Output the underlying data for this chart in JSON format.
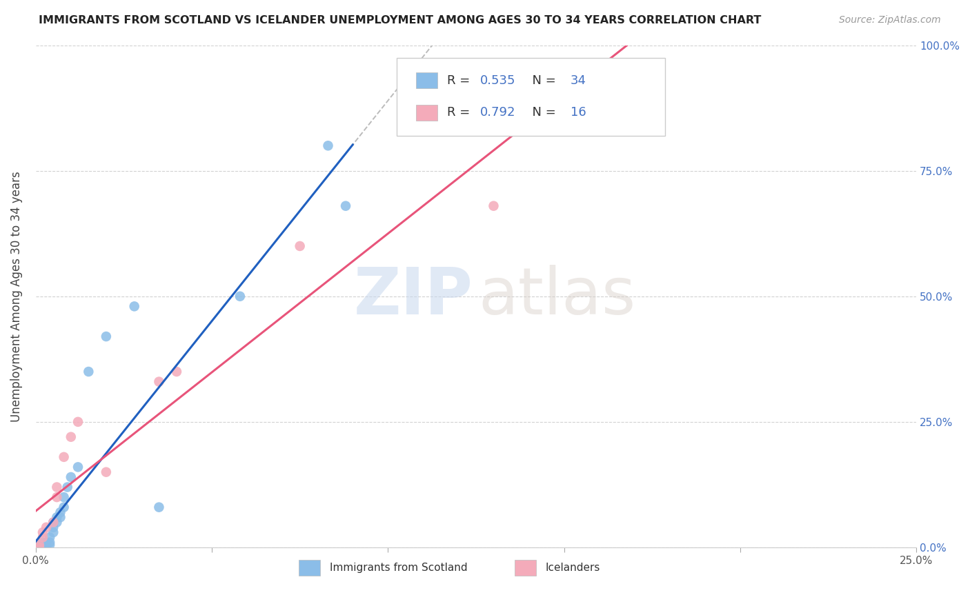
{
  "title": "IMMIGRANTS FROM SCOTLAND VS ICELANDER UNEMPLOYMENT AMONG AGES 30 TO 34 YEARS CORRELATION CHART",
  "source": "Source: ZipAtlas.com",
  "ylabel": "Unemployment Among Ages 30 to 34 years",
  "xlim": [
    0,
    0.25
  ],
  "ylim": [
    0,
    1.0
  ],
  "yticks": [
    0.0,
    0.25,
    0.5,
    0.75,
    1.0
  ],
  "yticklabels": [
    "0.0%",
    "25.0%",
    "50.0%",
    "75.0%",
    "100.0%"
  ],
  "xticks": [
    0.0,
    0.05,
    0.1,
    0.15,
    0.2,
    0.25
  ],
  "xticklabels": [
    "0.0%",
    "",
    "",
    "",
    "",
    "25.0%"
  ],
  "legend_R1": "0.535",
  "legend_N1": "34",
  "legend_R2": "0.792",
  "legend_N2": "16",
  "legend_label1": "Immigrants from Scotland",
  "legend_label2": "Icelanders",
  "blue_color": "#8BBDE8",
  "pink_color": "#F4ABBA",
  "blue_line_color": "#2060C0",
  "pink_line_color": "#E8547A",
  "dash_color": "#BBBBBB",
  "scotland_x": [
    0.001,
    0.001,
    0.001,
    0.001,
    0.001,
    0.002,
    0.002,
    0.002,
    0.002,
    0.003,
    0.003,
    0.003,
    0.004,
    0.004,
    0.004,
    0.005,
    0.005,
    0.005,
    0.006,
    0.006,
    0.007,
    0.007,
    0.008,
    0.008,
    0.009,
    0.01,
    0.012,
    0.015,
    0.02,
    0.028,
    0.035,
    0.058,
    0.083,
    0.088
  ],
  "scotland_y": [
    0.0,
    0.0,
    0.0,
    0.0,
    0.005,
    0.0,
    0.0,
    0.005,
    0.01,
    0.0,
    0.005,
    0.01,
    0.005,
    0.01,
    0.02,
    0.03,
    0.04,
    0.05,
    0.05,
    0.06,
    0.06,
    0.07,
    0.08,
    0.1,
    0.12,
    0.14,
    0.16,
    0.35,
    0.42,
    0.48,
    0.08,
    0.5,
    0.8,
    0.68
  ],
  "iceland_x": [
    0.001,
    0.001,
    0.002,
    0.002,
    0.003,
    0.005,
    0.006,
    0.006,
    0.008,
    0.01,
    0.012,
    0.02,
    0.035,
    0.04,
    0.075,
    0.13
  ],
  "iceland_y": [
    0.0,
    0.005,
    0.02,
    0.03,
    0.04,
    0.05,
    0.1,
    0.12,
    0.18,
    0.22,
    0.25,
    0.15,
    0.33,
    0.35,
    0.6,
    0.68
  ]
}
